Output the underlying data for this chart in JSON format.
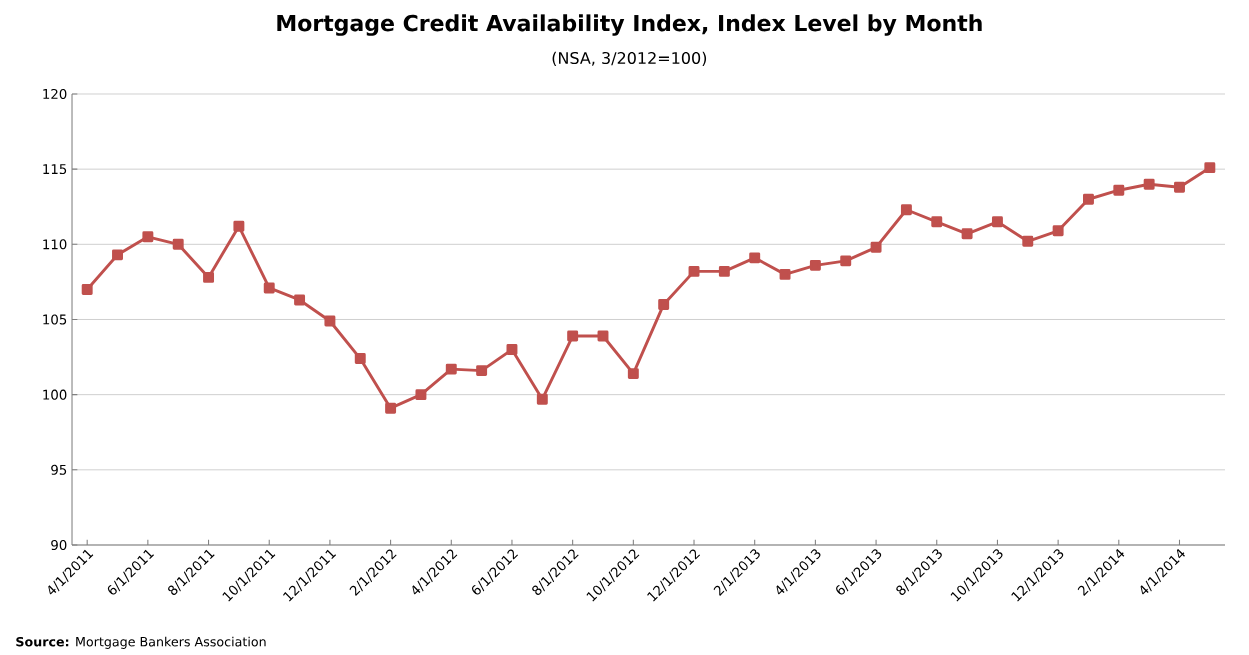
{
  "chart_data": {
    "type": "line",
    "title": "Mortgage Credit Availability Index, Index Level by Month",
    "subtitle": "(NSA, 3/2012=100)",
    "categories": [
      "4/1/2011",
      null,
      "6/1/2011",
      null,
      "8/1/2011",
      null,
      "10/1/2011",
      null,
      "12/1/2011",
      null,
      "2/1/2012",
      null,
      "4/1/2012",
      null,
      "6/1/2012",
      null,
      "8/1/2012",
      null,
      "10/1/2012",
      null,
      "12/1/2012",
      null,
      "2/1/2013",
      null,
      "4/1/2013",
      null,
      "6/1/2013",
      null,
      "8/1/2013",
      null,
      "10/1/2013",
      null,
      "12/1/2013",
      null,
      "2/1/2014",
      null,
      "4/1/2014",
      null
    ],
    "series": [
      {
        "color": "#c0504d",
        "values": [
          107.0,
          109.3,
          110.5,
          110.0,
          107.8,
          111.2,
          107.1,
          106.3,
          104.9,
          102.4,
          99.1,
          100.0,
          101.7,
          101.6,
          103.0,
          99.7,
          103.9,
          103.9,
          101.4,
          106.0,
          108.2,
          108.2,
          109.1,
          108.0,
          108.6,
          108.9,
          109.8,
          112.3,
          111.5,
          110.7,
          111.5,
          110.2,
          110.9,
          113.0,
          113.6,
          114.0,
          113.8,
          115.1
        ]
      }
    ],
    "ylim": [
      90,
      120
    ],
    "yticks": [
      90,
      95,
      100,
      105,
      110,
      115,
      120
    ],
    "grid": "y",
    "marker": "square",
    "line_style": "solid",
    "annotations": [
      "**Source:** Mortgage Bankers Association"
    ]
  }
}
